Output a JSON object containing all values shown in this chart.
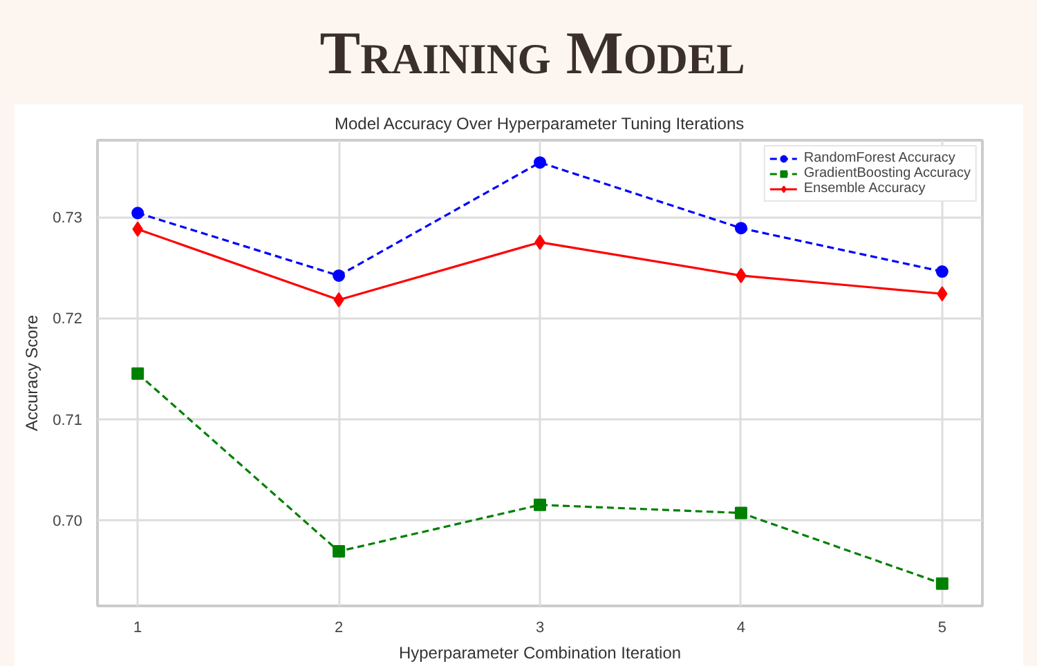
{
  "chart_data": {
    "type": "line",
    "title": "Training Model",
    "subtitle": "Model Accuracy Over Hyperparameter Tuning Iterations",
    "xlabel": "Hyperparameter Combination Iteration",
    "ylabel": "Accuracy Score",
    "x": [
      1,
      2,
      3,
      4,
      5
    ],
    "series": [
      {
        "name": "RandomForest Accuracy",
        "color": "#0000ff",
        "marker": "circle",
        "line_style": "dashed",
        "values": [
          0.7304,
          0.7242,
          0.7354,
          0.7289,
          0.7246
        ]
      },
      {
        "name": "GradientBoosting Accuracy",
        "color": "#008000",
        "marker": "square",
        "line_style": "dashed",
        "values": [
          0.7145,
          0.6969,
          0.7015,
          0.7007,
          0.6937
        ]
      },
      {
        "name": "Ensemble Accuracy",
        "color": "#ff0000",
        "marker": "diamond",
        "line_style": "solid",
        "values": [
          0.7288,
          0.7218,
          0.7275,
          0.7242,
          0.7224
        ]
      }
    ],
    "xlim": [
      0.8,
      5.2
    ],
    "xticks": [
      1,
      2,
      3,
      4,
      5
    ],
    "ylim": [
      0.6915,
      0.7376
    ],
    "yticks": [
      {
        "value": 0.7,
        "label": "0.70"
      },
      {
        "value": 0.71,
        "label": "0.71"
      },
      {
        "value": 0.72,
        "label": "0.72"
      },
      {
        "value": 0.73,
        "label": "0.73"
      }
    ],
    "grid": true,
    "legend": "top right"
  }
}
